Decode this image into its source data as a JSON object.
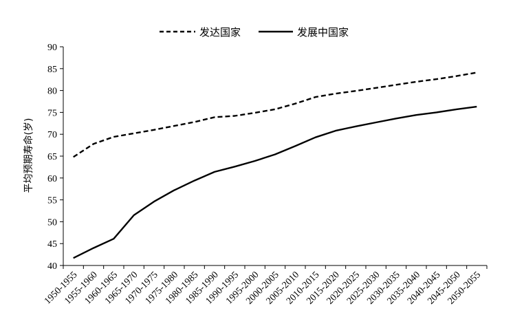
{
  "chart_data": {
    "type": "line",
    "categories": [
      "1950-1955",
      "1955-1960",
      "1960-1965",
      "1965-1970",
      "1970-1975",
      "1975-1980",
      "1980-1985",
      "1985-1990",
      "1990-1995",
      "1995-2000",
      "2000-2005",
      "2005-2010",
      "2010-2015",
      "2015-2020",
      "2020-2025",
      "2025-2030",
      "2030-2035",
      "2035-2040",
      "2040-2045",
      "2045-2050",
      "2050-2055"
    ],
    "series": [
      {
        "name": "发达国家",
        "style": "dashed",
        "values": [
          64.8,
          67.8,
          69.4,
          70.2,
          71.0,
          71.9,
          72.8,
          73.9,
          74.2,
          74.9,
          75.7,
          77.0,
          78.5,
          79.3,
          79.9,
          80.6,
          81.3,
          82.0,
          82.6,
          83.3,
          84.1
        ]
      },
      {
        "name": "发展中国家",
        "style": "solid",
        "values": [
          41.7,
          44.0,
          46.1,
          51.5,
          54.6,
          57.2,
          59.4,
          61.4,
          62.6,
          63.9,
          65.4,
          67.3,
          69.3,
          70.8,
          71.8,
          72.7,
          73.6,
          74.4,
          75.0,
          75.7,
          76.3
        ]
      }
    ],
    "ylabel": "平均预期寿命(岁)",
    "xlabel": "",
    "ylim": [
      40,
      90
    ],
    "yticks": [
      40,
      45,
      50,
      55,
      60,
      65,
      70,
      75,
      80,
      85,
      90
    ],
    "grid": false,
    "legend": "top"
  },
  "colors": {
    "line": "#000000",
    "axis": "#000000"
  }
}
